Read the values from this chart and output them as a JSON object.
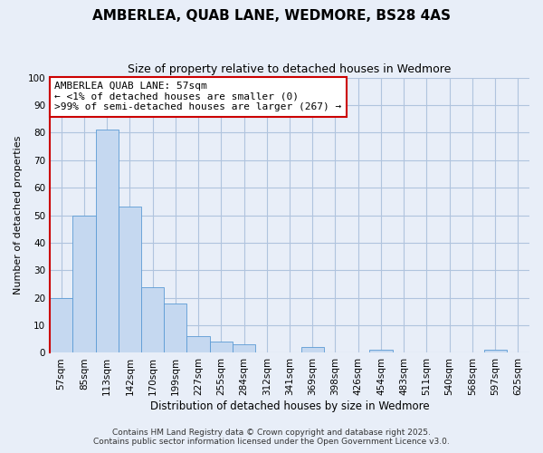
{
  "title": "AMBERLEA, QUAB LANE, WEDMORE, BS28 4AS",
  "subtitle": "Size of property relative to detached houses in Wedmore",
  "xlabel": "Distribution of detached houses by size in Wedmore",
  "ylabel": "Number of detached properties",
  "categories": [
    "57sqm",
    "85sqm",
    "113sqm",
    "142sqm",
    "170sqm",
    "199sqm",
    "227sqm",
    "255sqm",
    "284sqm",
    "312sqm",
    "341sqm",
    "369sqm",
    "398sqm",
    "426sqm",
    "454sqm",
    "483sqm",
    "511sqm",
    "540sqm",
    "568sqm",
    "597sqm",
    "625sqm"
  ],
  "values": [
    20,
    50,
    81,
    53,
    24,
    18,
    6,
    4,
    3,
    0,
    0,
    2,
    0,
    0,
    1,
    0,
    0,
    0,
    0,
    1,
    0
  ],
  "bar_color": "#c5d8f0",
  "bar_edge_color": "#5b9bd5",
  "ylim": [
    0,
    100
  ],
  "yticks": [
    0,
    10,
    20,
    30,
    40,
    50,
    60,
    70,
    80,
    90,
    100
  ],
  "annotation_title": "AMBERLEA QUAB LANE: 57sqm",
  "annotation_line1": "← <1% of detached houses are smaller (0)",
  "annotation_line2": ">99% of semi-detached houses are larger (267) →",
  "footer_line1": "Contains HM Land Registry data © Crown copyright and database right 2025.",
  "footer_line2": "Contains public sector information licensed under the Open Government Licence v3.0.",
  "bg_color": "#e8eef8",
  "plot_bg_color": "#e8eef8",
  "grid_color": "#b0c4de",
  "spine_color": "#cc0000",
  "title_fontsize": 11,
  "subtitle_fontsize": 9,
  "ylabel_fontsize": 8,
  "xlabel_fontsize": 8.5,
  "tick_fontsize": 7.5,
  "annot_fontsize": 8,
  "footer_fontsize": 6.5
}
